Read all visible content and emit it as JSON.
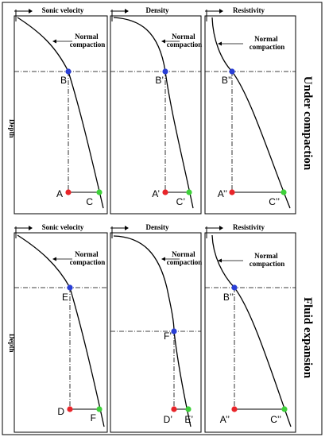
{
  "rows": [
    {
      "side_label": "Under compaction",
      "depth_label": "Depth",
      "panels": [
        {
          "title": "Sonic velocity",
          "annotation": "Normal compaction",
          "top_point": "B",
          "left_point": "A",
          "right_point": "C"
        },
        {
          "title": "Density",
          "annotation": "Normal compaction",
          "top_point": "B’",
          "left_point": "A’",
          "right_point": "C’"
        },
        {
          "title": "Resistivity",
          "annotation": "Normal compaction",
          "top_point": "B’’",
          "left_point": "A’’",
          "right_point": "C’’"
        }
      ]
    },
    {
      "side_label": "Fluid expansion",
      "depth_label": "Depth",
      "panels": [
        {
          "title": "Sonic velocity",
          "annotation": "Normal compaction",
          "top_point": "E",
          "left_point": "D",
          "right_point": "F"
        },
        {
          "title": "Density",
          "annotation": "Normal compaction",
          "top_point": "F’",
          "left_point": "D’",
          "right_point": "E’"
        },
        {
          "title": "Resistivity",
          "annotation": "Normal compaction",
          "top_point": "B’’",
          "left_point": "A’’",
          "right_point": "C’’"
        }
      ]
    }
  ],
  "colors": {
    "blue_point": "#2a3fd6",
    "red_point": "#e8252a",
    "green_point": "#3ed13a"
  }
}
